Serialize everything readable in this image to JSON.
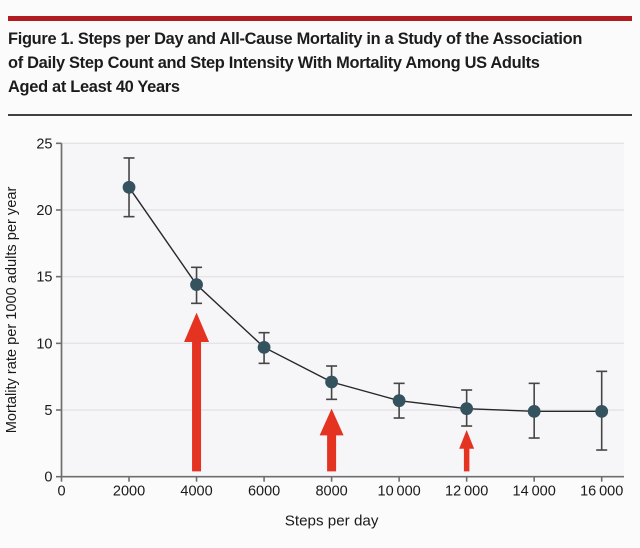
{
  "header": {
    "rule_color": "#b11b22",
    "title_lines": [
      "Figure 1. Steps per Day and All-Cause Mortality in a Study of the Association",
      "of Daily Step Count and Step Intensity With Mortality Among US Adults",
      "Aged at Least 40 Years"
    ]
  },
  "chart_data": {
    "type": "line",
    "title": "",
    "xlabel": "Steps per day",
    "ylabel": "Mortality rate per 1000 adults per year",
    "x": [
      2000,
      4000,
      6000,
      8000,
      10000,
      12000,
      14000,
      16000
    ],
    "series": [
      {
        "name": "All-cause mortality rate",
        "values": [
          21.7,
          14.4,
          9.7,
          7.1,
          5.7,
          5.1,
          4.9,
          4.9
        ],
        "ci_upper": [
          23.9,
          15.7,
          10.8,
          8.3,
          7.0,
          6.5,
          7.0,
          7.9
        ],
        "ci_lower": [
          19.5,
          13.0,
          8.5,
          5.8,
          4.4,
          3.8,
          2.9,
          2.0
        ]
      }
    ],
    "xlim": [
      0,
      16660
    ],
    "ylim": [
      0,
      25
    ],
    "x_ticks": [
      0,
      2000,
      4000,
      6000,
      8000,
      10000,
      12000,
      14000,
      16000
    ],
    "x_tick_labels": [
      "0",
      "2000",
      "4000",
      "6000",
      "8000",
      "10 000",
      "12 000",
      "14 000",
      "16 000"
    ],
    "y_ticks": [
      0,
      5,
      10,
      15,
      20,
      25
    ],
    "y_tick_labels": [
      "0",
      "5",
      "10",
      "15",
      "20",
      "25"
    ],
    "grid": "horizontal",
    "legend": "none",
    "annotations": {
      "arrow_color": "#e53322",
      "arrows": [
        {
          "x": 4000,
          "tip": 12.3,
          "head_base": 10.1,
          "bottom": 0.4,
          "head_width": 25,
          "shaft_width": 9
        },
        {
          "x": 8000,
          "tip": 5.1,
          "head_base": 3.1,
          "bottom": 0.4,
          "head_width": 24,
          "shaft_width": 9
        },
        {
          "x": 12000,
          "tip": 3.5,
          "head_base": 2.1,
          "bottom": 0.4,
          "head_width": 15,
          "shaft_width": 5.5
        }
      ]
    },
    "colors": {
      "point": "#35535f",
      "line": "#272727",
      "error_bar": "#454545",
      "grid": "#e4e4e7",
      "axis": "#6e6e6e",
      "plot_bg": "#f6f6f8",
      "tick_text": "#1a1a1a"
    }
  }
}
